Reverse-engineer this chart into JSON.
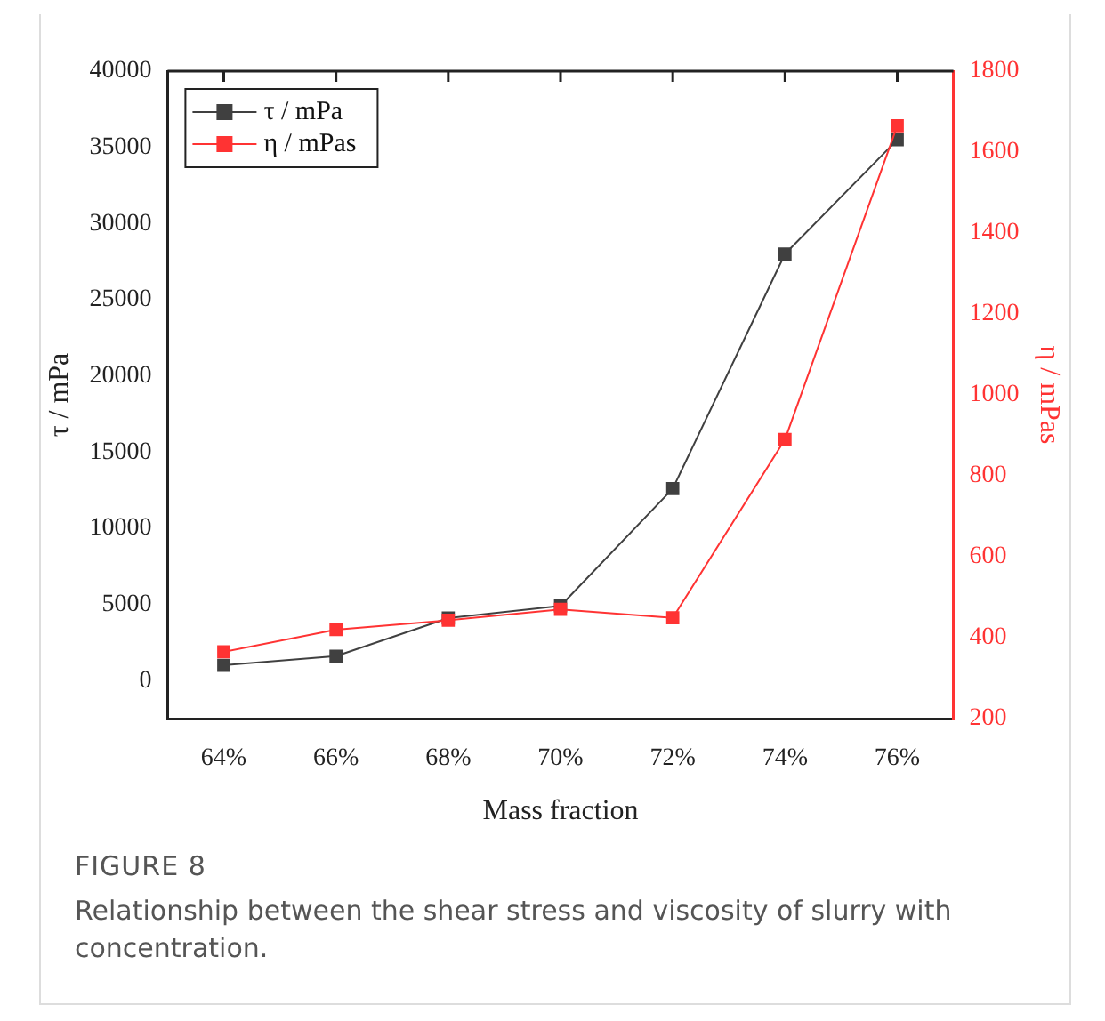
{
  "chart_data": {
    "type": "line",
    "xlabel": "Mass fraction",
    "ylabel": "τ / mPa",
    "y2label": "η / mPas",
    "x": [
      64,
      66,
      68,
      70,
      72,
      74,
      76
    ],
    "xlim": [
      63,
      77
    ],
    "xticks": [
      {
        "value": 64,
        "label": "64%"
      },
      {
        "value": 66,
        "label": "66%"
      },
      {
        "value": 68,
        "label": "68%"
      },
      {
        "value": 70,
        "label": "70%"
      },
      {
        "value": 72,
        "label": "72%"
      },
      {
        "value": 74,
        "label": "74%"
      },
      {
        "value": 76,
        "label": "76%"
      }
    ],
    "ylim": [
      -2500,
      40000
    ],
    "yticks": [
      0,
      5000,
      10000,
      15000,
      20000,
      25000,
      30000,
      35000,
      40000
    ],
    "y2lim": [
      200,
      1800
    ],
    "y2ticks": [
      200,
      400,
      600,
      800,
      1000,
      1200,
      1400,
      1600,
      1800
    ],
    "series": [
      {
        "name": "τ / mPa",
        "color": "#404040",
        "values": [
          1000,
          1600,
          4100,
          4900,
          12600,
          28000,
          35500
        ]
      },
      {
        "name": "η / mPas",
        "color": "#ff3333",
        "axis": "y2",
        "values": [
          365,
          420,
          443,
          470,
          449,
          890,
          1665
        ]
      }
    ],
    "marker": "square",
    "line_style": "solid",
    "grid": false,
    "legend": "top left",
    "annotations": [
      "FIGURE 8",
      "Relationship between the shear stress and viscosity of slurry with concentration."
    ]
  }
}
